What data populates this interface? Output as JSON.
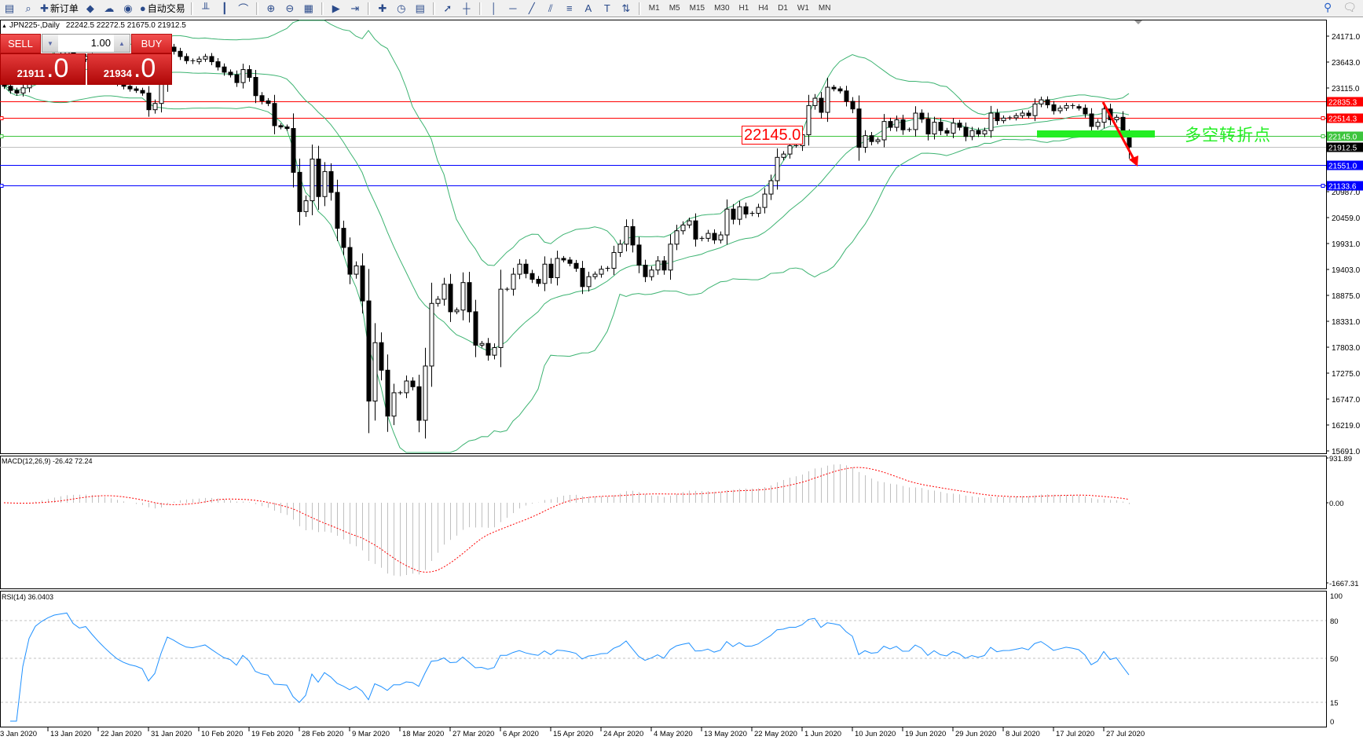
{
  "toolbar": {
    "items": [
      {
        "icon": "new-chart-icon"
      },
      {
        "icon": "zoom-window-icon"
      },
      {
        "icon": "new-order-icon",
        "label": "新订单"
      },
      {
        "icon": "gold-bar-icon"
      },
      {
        "icon": "history-center-icon"
      },
      {
        "icon": "signal-icon"
      },
      {
        "icon": "autotrading-icon",
        "label": "自动交易"
      },
      {
        "sep": true
      },
      {
        "icon": "bar-chart-icon"
      },
      {
        "icon": "candlestick-icon"
      },
      {
        "icon": "line-chart-icon"
      },
      {
        "sep": true
      },
      {
        "icon": "zoom-in-icon"
      },
      {
        "icon": "zoom-out-icon"
      },
      {
        "icon": "tile-windows-icon"
      },
      {
        "sep": true
      },
      {
        "icon": "auto-scroll-icon"
      },
      {
        "icon": "chart-shift-icon"
      },
      {
        "sep": true
      },
      {
        "icon": "indicators-icon"
      },
      {
        "icon": "periods-icon"
      },
      {
        "icon": "templates-icon"
      },
      {
        "sep": true
      },
      {
        "icon": "cursor-icon"
      },
      {
        "icon": "crosshair-icon"
      },
      {
        "sep": true
      },
      {
        "icon": "vertical-line-icon"
      },
      {
        "icon": "horizontal-line-icon"
      },
      {
        "icon": "trendline-icon"
      },
      {
        "icon": "equidistant-channel-icon"
      },
      {
        "icon": "fibonacci-icon"
      },
      {
        "icon": "text-icon"
      },
      {
        "icon": "text-label-icon"
      },
      {
        "icon": "arrows-icon"
      },
      {
        "sep": true
      }
    ],
    "timeframes": [
      "M1",
      "M5",
      "M15",
      "M30",
      "H1",
      "H4",
      "D1",
      "W1",
      "MN"
    ],
    "right_icons": [
      "search-icon",
      "chat-icon"
    ]
  },
  "chart": {
    "symbol": "JPN225-,Daily",
    "ohlc": "22242.5 22272.5 21675.0 21912.5"
  },
  "trade_panel": {
    "sell_label": "SELL",
    "buy_label": "BUY",
    "lot": "1.00",
    "sell_main": "21911",
    "sell_frac": ".0",
    "buy_main": "21934",
    "buy_frac": ".0"
  },
  "annotations": {
    "level_label": "22145.0",
    "text": "多空转折点",
    "colors": {
      "box": "#ff0000",
      "zone": "#22ee22",
      "arrow": "#ff0000"
    }
  },
  "chart_data": {
    "type": "candlestick",
    "last_bar": {
      "open": 22242.5,
      "high": 22272.5,
      "low": 21675.0,
      "close": 21912.5
    },
    "closes": [
      23150,
      23065,
      23012,
      23118,
      23278,
      23437,
      23543,
      23650,
      23756,
      23809,
      23862,
      23756,
      23703,
      23756,
      23650,
      23543,
      23437,
      23331,
      23225,
      23150,
      23097,
      23065,
      23012,
      22672,
      22800,
      23278,
      23947,
      23862,
      23756,
      23671,
      23650,
      23703,
      23756,
      23650,
      23543,
      23437,
      23384,
      23225,
      23490,
      23331,
      22959,
      22853,
      22800,
      22348,
      22321,
      22290,
      21397,
      20597,
      20818,
      21668,
      20903,
      21413,
      20988,
      20257,
      19867,
      19322,
      19492,
      18778,
      16738,
      17928,
      17367,
      16432,
      16908,
      16908,
      17147,
      17030,
      16347,
      17452,
      18727,
      18812,
      19118,
      18557,
      18592,
      19152,
      18557,
      17877,
      17912,
      17673,
      17827,
      19017,
      19017,
      19322,
      19527,
      19336,
      19219,
      19134,
      19527,
      19251,
      19644,
      19612,
      19543,
      19442,
      19070,
      19272,
      19322,
      19424,
      19442,
      19764,
      19934,
      20292,
      19917,
      19506,
      19272,
      19407,
      19594,
      19407,
      19934,
      20207,
      20324,
      20409,
      20037,
      20053,
      20154,
      20019,
      20122,
      20648,
      20441,
      20696,
      20547,
      20562,
      20682,
      20954,
      21227,
      21702,
      21769,
      21939,
      21939,
      22162,
      22757,
      22906,
      22619,
      23130,
      23097,
      23055,
      22842,
      22688,
      21907,
      22144,
      22024,
      22059,
      22433,
      22314,
      22467,
      22263,
      22268,
      22603,
      22481,
      22178,
      22417,
      22247,
      22195,
      22399,
      22314,
      22127,
      22247,
      22178,
      22247,
      22603,
      22449,
      22502,
      22507,
      22552,
      22603,
      22552,
      22789,
      22874,
      22773,
      22651,
      22704,
      22757,
      22736,
      22704,
      22587,
      22332,
      22417,
      22688,
      22467,
      22518,
      22242.5,
      21912.5
    ],
    "ylim": [
      15691.0,
      24171.0
    ],
    "price_axis_labels": [
      "24171.0",
      "23643.0",
      "23115.0",
      null,
      null,
      null,
      "20987.0",
      "20459.0",
      "19931.0",
      "19403.0",
      "18875.0",
      "18331.0",
      "17803.0",
      "17275.0",
      "16747.0",
      "16219.0",
      "15691.0"
    ],
    "levels": [
      {
        "price": 22835.3,
        "label": "22835.3",
        "color": "#ff0000",
        "tag": "#ff0000"
      },
      {
        "price": 22514.3,
        "label": "22514.3",
        "color": "#ff0000",
        "tag": "#ff0000"
      },
      {
        "price": 22145.0,
        "label": "22145.0",
        "color": "#3cc43c",
        "tag": "#3cc43c"
      },
      {
        "price": 21912.5,
        "label": "21912.5",
        "color": "#c0c0c0",
        "tag": "#000000"
      },
      {
        "price": 21551.0,
        "label": "21551.0",
        "color": "#0000ff",
        "tag": "#0000ff"
      },
      {
        "price": 21133.6,
        "label": "21133.6",
        "color": "#0000ff",
        "tag": "#0000ff"
      }
    ],
    "x_ticks": [
      {
        "label": "3 Jan 2020",
        "bar": -1
      },
      {
        "label": "13 Jan 2020",
        "bar": 7
      },
      {
        "label": "22 Jan 2020",
        "bar": 15
      },
      {
        "label": "31 Jan 2020",
        "bar": 23
      },
      {
        "label": "10 Feb 2020",
        "bar": 31
      },
      {
        "label": "19 Feb 2020",
        "bar": 39
      },
      {
        "label": "28 Feb 2020",
        "bar": 47
      },
      {
        "label": "9 Mar 2020",
        "bar": 55
      },
      {
        "label": "18 Mar 2020",
        "bar": 63
      },
      {
        "label": "27 Mar 2020",
        "bar": 71
      },
      {
        "label": "6 Apr 2020",
        "bar": 79
      },
      {
        "label": "15 Apr 2020",
        "bar": 87
      },
      {
        "label": "24 Apr 2020",
        "bar": 95
      },
      {
        "label": "4 May 2020",
        "bar": 103
      },
      {
        "label": "13 May 2020",
        "bar": 111
      },
      {
        "label": "22 May 2020",
        "bar": 119
      },
      {
        "label": "1 Jun 2020",
        "bar": 127
      },
      {
        "label": "10 Jun 2020",
        "bar": 135
      },
      {
        "label": "19 Jun 2020",
        "bar": 143
      },
      {
        "label": "29 Jun 2020",
        "bar": 151
      },
      {
        "label": "8 Jul 2020",
        "bar": 159
      },
      {
        "label": "17 Jul 2020",
        "bar": 167
      },
      {
        "label": "27 Jul 2020",
        "bar": 175
      }
    ],
    "bollinger": {
      "period": 20,
      "deviation": 2,
      "color": "#3cb371"
    },
    "macd": {
      "label": "MACD(12,26,9) -26.42 72.24",
      "fast": 12,
      "slow": 26,
      "signal": 9,
      "ylim": [
        -1667.31,
        931.89
      ],
      "ticks": [
        "931.89",
        "0.00",
        "-1667.31"
      ],
      "hist_color": "#c0c0c0",
      "signal_color": "#ff0000"
    },
    "rsi": {
      "label": "RSI(14) 36.0403",
      "period": 14,
      "ylim": [
        0,
        100
      ],
      "levels": [
        80,
        50,
        15
      ],
      "ticks": [
        "100",
        "80",
        "50",
        "15",
        "0"
      ],
      "color": "#1e90ff"
    }
  }
}
